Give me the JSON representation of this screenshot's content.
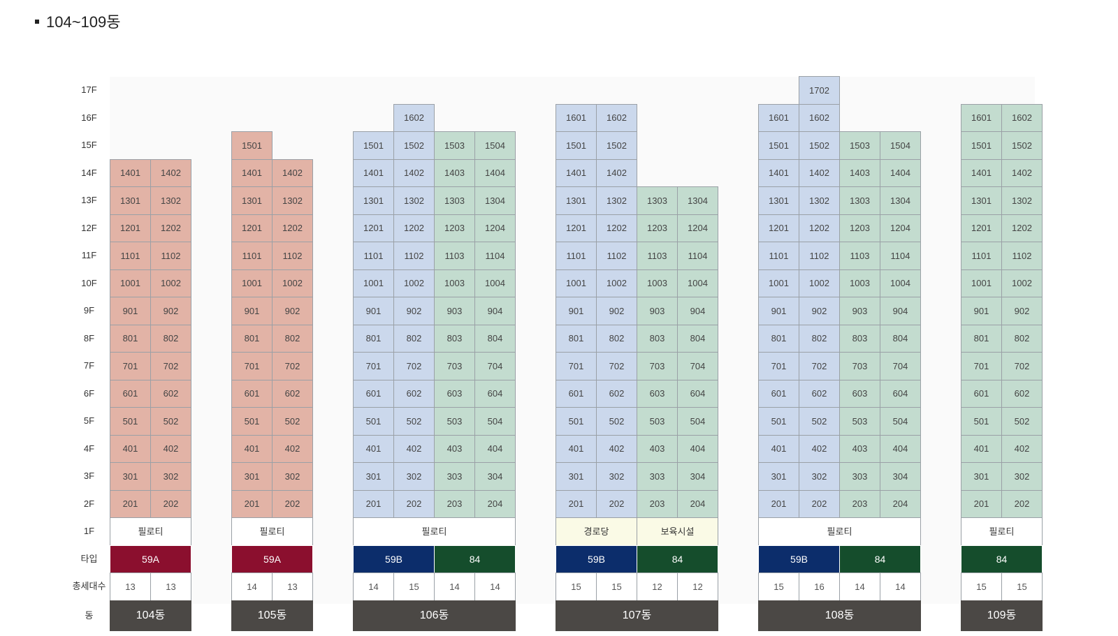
{
  "title": "104~109동",
  "floor_labels": [
    "17F",
    "16F",
    "15F",
    "14F",
    "13F",
    "12F",
    "11F",
    "10F",
    "9F",
    "8F",
    "7F",
    "6F",
    "5F",
    "4F",
    "3F",
    "2F",
    "1F"
  ],
  "row_labels": {
    "type": "타입",
    "households": "총세대수",
    "dong": "동"
  },
  "colors": {
    "59A": "#8b0f2e",
    "59B": "#0c2d6b",
    "84": "#154d2c",
    "unit_59A": "#e2b3a6",
    "unit_59B": "#cbd8ec",
    "unit_84": "#c3dccf"
  },
  "buildings": [
    {
      "name": "104동",
      "top_floors": [
        14,
        14
      ],
      "col_types": [
        "59A",
        "59A"
      ],
      "pilotis": [
        {
          "label": "필로티",
          "span": 2,
          "style": "white"
        }
      ],
      "types": [
        {
          "label": "59A",
          "span": 2
        }
      ],
      "counts": [
        "13",
        "13"
      ]
    },
    {
      "name": "105동",
      "top_floors": [
        15,
        14
      ],
      "col_types": [
        "59A",
        "59A"
      ],
      "pilotis": [
        {
          "label": "필로티",
          "span": 2,
          "style": "white"
        }
      ],
      "types": [
        {
          "label": "59A",
          "span": 2
        }
      ],
      "counts": [
        "14",
        "13"
      ]
    },
    {
      "name": "106동",
      "top_floors": [
        15,
        16,
        15,
        15
      ],
      "col_types": [
        "59B",
        "59B",
        "84",
        "84"
      ],
      "pilotis": [
        {
          "label": "필로티",
          "span": 4,
          "style": "white"
        }
      ],
      "types": [
        {
          "label": "59B",
          "span": 2
        },
        {
          "label": "84",
          "span": 2
        }
      ],
      "counts": [
        "14",
        "15",
        "14",
        "14"
      ]
    },
    {
      "name": "107동",
      "top_floors": [
        16,
        16,
        13,
        13
      ],
      "col_types": [
        "59B",
        "59B",
        "84",
        "84"
      ],
      "pilotis": [
        {
          "label": "경로당",
          "span": 2,
          "style": "cream"
        },
        {
          "label": "보육시설",
          "span": 2,
          "style": "cream"
        }
      ],
      "types": [
        {
          "label": "59B",
          "span": 2
        },
        {
          "label": "84",
          "span": 2
        }
      ],
      "counts": [
        "15",
        "15",
        "12",
        "12"
      ]
    },
    {
      "name": "108동",
      "top_floors": [
        16,
        17,
        15,
        15
      ],
      "col_types": [
        "59B",
        "59B",
        "84",
        "84"
      ],
      "pilotis": [
        {
          "label": "필로티",
          "span": 4,
          "style": "white"
        }
      ],
      "types": [
        {
          "label": "59B",
          "span": 2
        },
        {
          "label": "84",
          "span": 2
        }
      ],
      "counts": [
        "15",
        "16",
        "14",
        "14"
      ]
    },
    {
      "name": "109동",
      "top_floors": [
        16,
        16
      ],
      "col_types": [
        "84",
        "84"
      ],
      "pilotis": [
        {
          "label": "필로티",
          "span": 2,
          "style": "white"
        }
      ],
      "types": [
        {
          "label": "84",
          "span": 2
        }
      ],
      "counts": [
        "15",
        "15"
      ]
    }
  ]
}
